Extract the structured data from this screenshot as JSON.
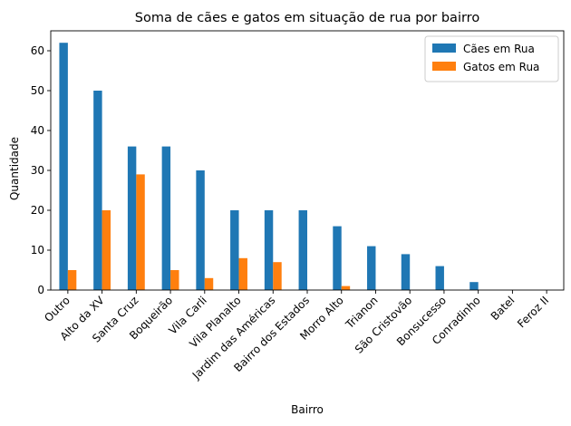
{
  "chart_data": {
    "type": "bar",
    "title": "Soma de cães e gatos em situação de rua por bairro",
    "xlabel": "Bairro",
    "ylabel": "Quantidade",
    "ylim": [
      0,
      65
    ],
    "yticks": [
      0,
      10,
      20,
      30,
      40,
      50,
      60
    ],
    "legend_position": "top-right",
    "grid": false,
    "categories": [
      "Outro",
      "Alto da XV",
      "Santa Cruz",
      "Boqueirão",
      "Vila Carli",
      "Vila Planalto",
      "Jardim das Américas",
      "Bairro dos Estados",
      "Morro Alto",
      "Trianon",
      "São Cristovão",
      "Bonsucesso",
      "Conradinho",
      "Batel",
      "Feroz II"
    ],
    "series": [
      {
        "name": "Cães em Rua",
        "color": "#1f77b4",
        "values": [
          62,
          50,
          36,
          36,
          30,
          20,
          20,
          20,
          16,
          11,
          9,
          6,
          2,
          0,
          0
        ]
      },
      {
        "name": "Gatos em Rua",
        "color": "#ff7f0e",
        "values": [
          5,
          20,
          29,
          5,
          3,
          8,
          7,
          0,
          1,
          0,
          0,
          0,
          0,
          0,
          0
        ]
      }
    ]
  }
}
